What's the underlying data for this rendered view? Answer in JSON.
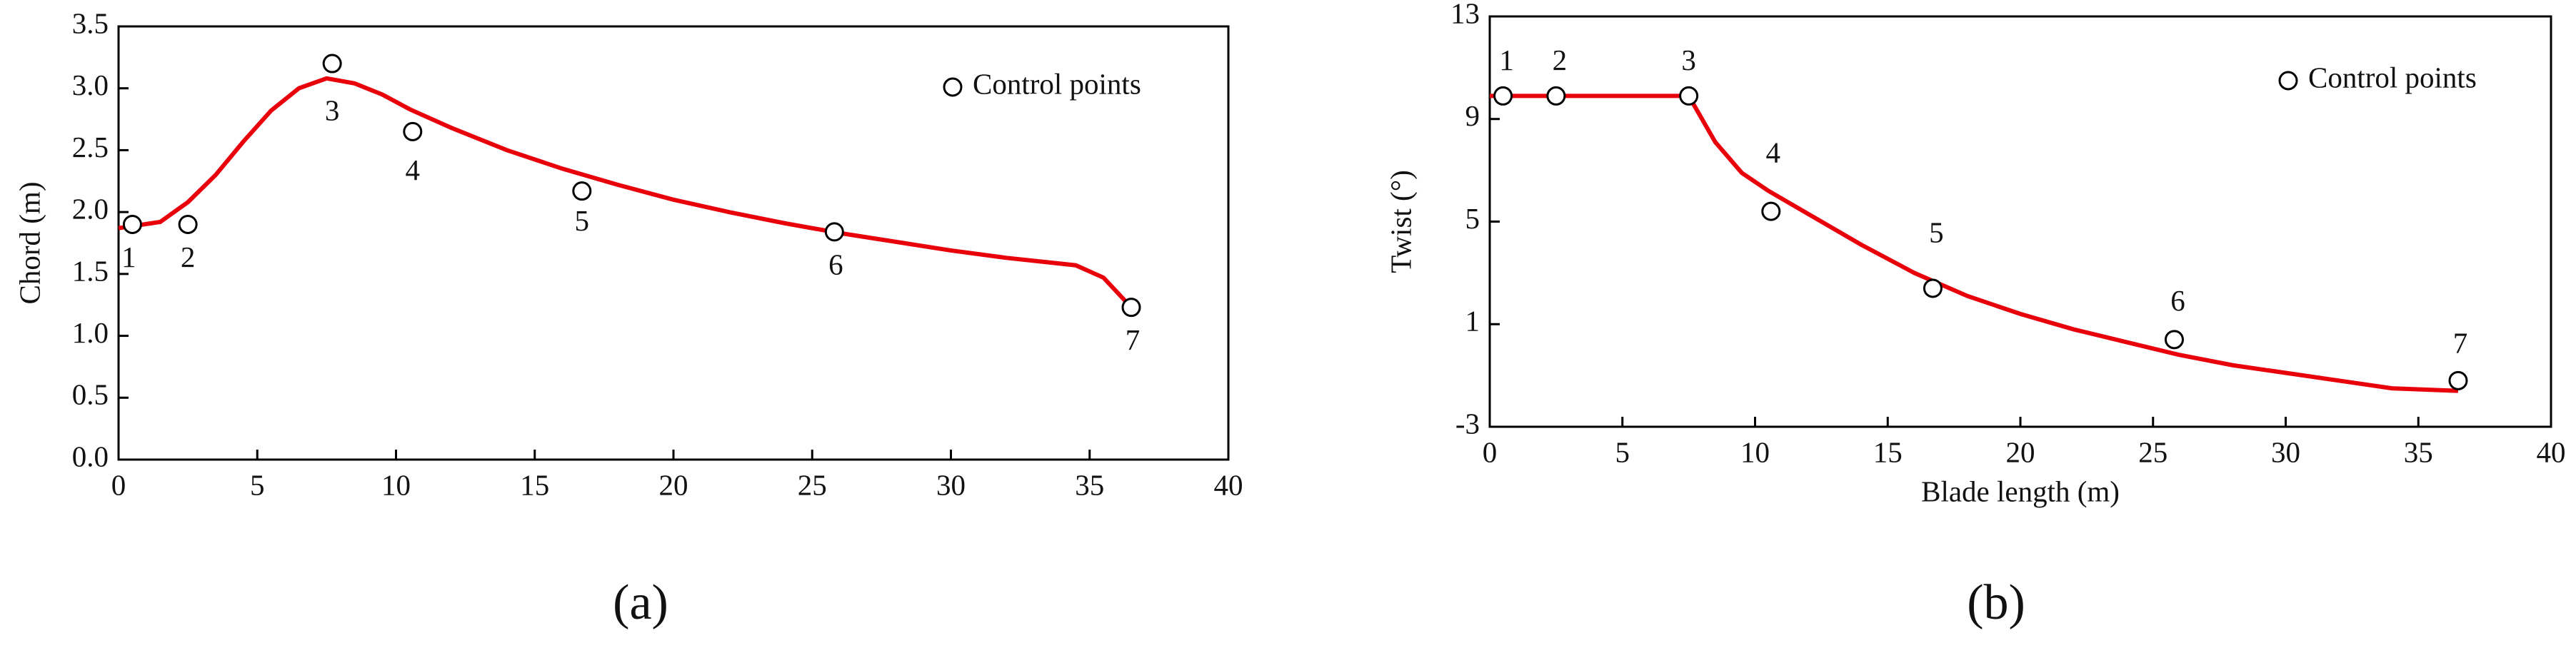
{
  "chart_data": [
    {
      "type": "line",
      "caption": "(a)",
      "ylabel": "Chord (m)",
      "xlim": [
        0,
        40
      ],
      "xticks": [
        0,
        5,
        10,
        15,
        20,
        25,
        30,
        35,
        40
      ],
      "ylim": [
        0,
        3.5
      ],
      "yticks": [
        {
          "value": 0,
          "label": "0.0"
        },
        0.5,
        {
          "value": 1,
          "label": "1.0"
        },
        1.5,
        {
          "value": 2,
          "label": "2.0"
        },
        2.5,
        {
          "value": 3,
          "label": "3.0"
        },
        3.5
      ],
      "curve": {
        "color": "#e8000b",
        "x": [
          0,
          1.5,
          2.5,
          3.5,
          4.5,
          5.5,
          6.5,
          7.5,
          8.5,
          9.5,
          10.5,
          12,
          14,
          16,
          18,
          20,
          22,
          24,
          26,
          28,
          30,
          32,
          34.5,
          35.5,
          36.5
        ],
        "values": [
          1.87,
          1.92,
          2.08,
          2.3,
          2.57,
          2.82,
          3.0,
          3.08,
          3.04,
          2.95,
          2.83,
          2.68,
          2.5,
          2.35,
          2.22,
          2.1,
          2.0,
          1.91,
          1.83,
          1.76,
          1.69,
          1.63,
          1.57,
          1.47,
          1.23
        ]
      },
      "control_points": {
        "name": "Control points",
        "x": [
          0.5,
          2.5,
          7.7,
          10.6,
          16.7,
          25.8,
          36.5
        ],
        "values": [
          1.9,
          1.9,
          3.2,
          2.65,
          2.17,
          1.84,
          1.23
        ],
        "labels": [
          "1",
          "2",
          "3",
          "4",
          "5",
          "6",
          "7"
        ]
      }
    },
    {
      "type": "line",
      "caption": "(b)",
      "xlabel": "Blade length (m)",
      "ylabel": "Twist (°)",
      "xlim": [
        0,
        40
      ],
      "xticks": [
        0,
        5,
        10,
        15,
        20,
        25,
        30,
        35,
        40
      ],
      "ylim": [
        -3,
        13
      ],
      "yticks": [
        -3,
        1,
        5,
        9,
        13
      ],
      "curve": {
        "color": "#e8000b",
        "x": [
          0,
          7.5,
          8.5,
          9.5,
          10.5,
          12,
          14,
          16,
          18,
          20,
          22,
          24,
          26,
          28,
          30,
          32,
          34,
          36.5
        ],
        "values": [
          9.9,
          9.9,
          8.1,
          6.9,
          6.2,
          5.3,
          4.1,
          3.0,
          2.1,
          1.4,
          0.8,
          0.3,
          -0.2,
          -0.6,
          -0.9,
          -1.2,
          -1.5,
          -1.6
        ],
        "color2": null
      },
      "control_points": {
        "name": "Control points",
        "x": [
          0.5,
          2.5,
          7.5,
          10.6,
          16.7,
          25.8,
          36.5
        ],
        "values": [
          9.9,
          9.9,
          9.9,
          5.4,
          2.4,
          0.4,
          -1.2
        ],
        "labels": [
          "1",
          "2",
          "3",
          "4",
          "5",
          "6",
          "7"
        ]
      }
    }
  ]
}
